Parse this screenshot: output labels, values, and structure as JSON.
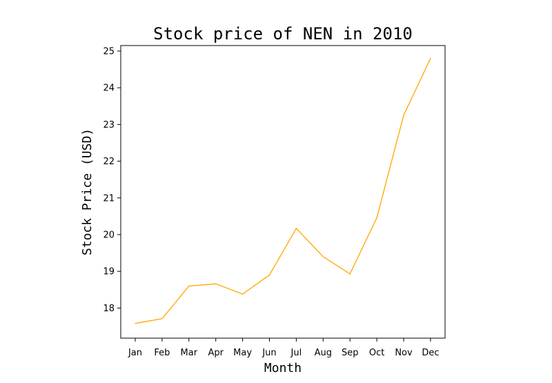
{
  "chart_data": {
    "type": "line",
    "title": "Stock price of NEN in 2010",
    "xlabel": "Month",
    "ylabel": "Stock Price (USD)",
    "categories": [
      "Jan",
      "Feb",
      "Mar",
      "Apr",
      "May",
      "Jun",
      "Jul",
      "Aug",
      "Sep",
      "Oct",
      "Nov",
      "Dec"
    ],
    "series": [
      {
        "values": [
          17.58,
          17.71,
          18.6,
          18.66,
          18.38,
          18.9,
          20.17,
          19.4,
          18.93,
          20.46,
          23.25,
          24.8
        ]
      }
    ],
    "ylim": [
      17.18,
      25.15
    ],
    "yticks": [
      "18",
      "19",
      "20",
      "21",
      "22",
      "23",
      "24",
      "25"
    ],
    "line_color": "#ffa500",
    "grid": false,
    "legend": "none"
  }
}
